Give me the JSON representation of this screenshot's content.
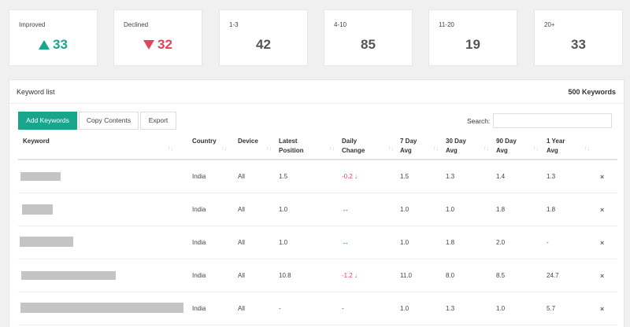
{
  "summary": {
    "improved": {
      "label": "Improved",
      "value": "33"
    },
    "declined": {
      "label": "Declined",
      "value": "32"
    },
    "r1_3": {
      "label": "1-3",
      "value": "42"
    },
    "r4_10": {
      "label": "4-10",
      "value": "85"
    },
    "r11_20": {
      "label": "11-20",
      "value": "19"
    },
    "r20p": {
      "label": "20+",
      "value": "33"
    }
  },
  "panel": {
    "title": "Keyword list",
    "count": "500 Keywords"
  },
  "toolbar": {
    "add": "Add Keywords",
    "copy": "Copy Contents",
    "export": "Export",
    "search_label": "Search:",
    "search_value": ""
  },
  "table": {
    "headers": {
      "keyword": "Keyword",
      "country": "Country",
      "device": "Device",
      "latest": "Latest Position",
      "daily": "Daily Change",
      "d7": "7 Day Avg",
      "d30": "30 Day Avg",
      "d90": "90 Day Avg",
      "y1": "1 Year Avg"
    },
    "rows": [
      {
        "country": "India",
        "device": "All",
        "latest": "1.5",
        "daily": "-0.2 ↓",
        "d7": "1.5",
        "d30": "1.3",
        "d90": "1.4",
        "y1": "1.3"
      },
      {
        "country": "India",
        "device": "All",
        "latest": "1.0",
        "daily": "↔",
        "d7": "1.0",
        "d30": "1.0",
        "d90": "1.8",
        "y1": "1.8"
      },
      {
        "country": "India",
        "device": "All",
        "latest": "1.0",
        "daily": "↔",
        "d7": "1.0",
        "d30": "1.8",
        "d90": "2.0",
        "y1": "-"
      },
      {
        "country": "India",
        "device": "All",
        "latest": "10.8",
        "daily": "-1.2 ↓",
        "d7": "11.0",
        "d30": "8.0",
        "d90": "8.5",
        "y1": "24.7"
      },
      {
        "country": "India",
        "device": "All",
        "latest": "-",
        "daily": "-",
        "d7": "1.0",
        "d30": "1.3",
        "d90": "1.0",
        "y1": "5.7"
      }
    ],
    "delete_icon": "×",
    "sort_icon": "↑↓"
  },
  "colors": {
    "accent": "#19a58c",
    "negative": "#e2445c",
    "neutral": "#3a8fd6"
  }
}
